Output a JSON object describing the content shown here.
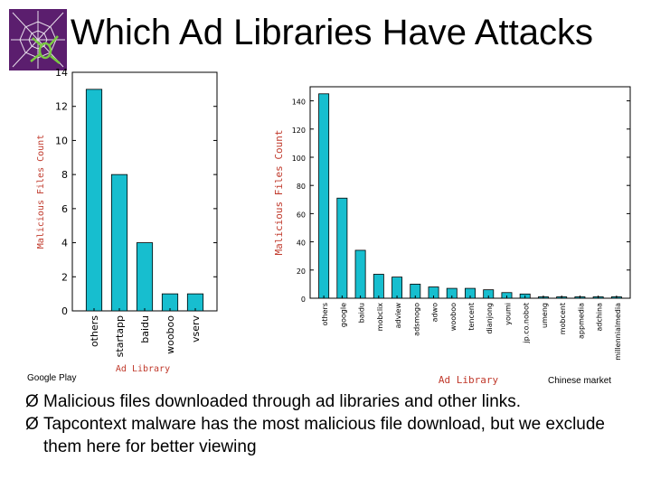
{
  "header": {
    "title": "Which Ad Libraries Have Attacks",
    "logo_icon": "spider-web-logo-icon",
    "logo_color": "#5b1e6e"
  },
  "charts": {
    "bar_color": "#17becf",
    "axis_label_color": "#c0392b"
  },
  "chart_data": [
    {
      "type": "bar",
      "categories": [
        "others",
        "startapp",
        "baidu",
        "wooboo",
        "vserv"
      ],
      "values": [
        13,
        8,
        4,
        1,
        1
      ],
      "title": "",
      "xlabel": "Ad Library",
      "ylabel": "Malicious Files Count",
      "ylim": [
        0,
        14
      ],
      "yticks": [
        0,
        2,
        4,
        6,
        8,
        10,
        12,
        14
      ],
      "grid": false,
      "caption": "Google Play"
    },
    {
      "type": "bar",
      "categories": [
        "others",
        "google",
        "baidu",
        "mobclix",
        "adview",
        "adsmogo",
        "adwo",
        "wooboo",
        "tencent",
        "dianjong",
        "youmi",
        "jp.co.nobot",
        "umeng",
        "mobcent",
        "appmedia",
        "adchina",
        "millennialmedia"
      ],
      "values": [
        145,
        71,
        34,
        17,
        15,
        10,
        8,
        7,
        7,
        6,
        4,
        3,
        1,
        1,
        1,
        1,
        1
      ],
      "title": "",
      "xlabel": "Ad Library",
      "ylabel": "Malicious Files Count",
      "ylim": [
        0,
        150
      ],
      "yticks": [
        0,
        20,
        40,
        60,
        80,
        100,
        120,
        140
      ],
      "grid": false,
      "caption": "Chinese market"
    }
  ],
  "bullets": {
    "marker": "Ø",
    "items": [
      "Malicious files downloaded through ad libraries and other links.",
      "Tapcontext malware has the most malicious file download, but we exclude them here for better viewing"
    ]
  }
}
